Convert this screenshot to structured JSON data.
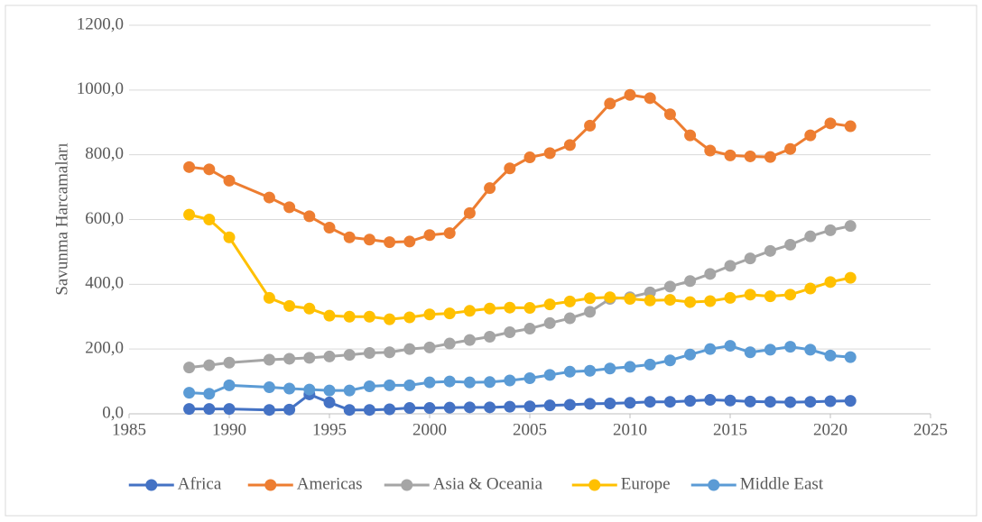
{
  "chart_data": {
    "type": "line",
    "y_label": "Savunma Harcamaları",
    "x": [
      1988,
      1989,
      1990,
      1992,
      1993,
      1994,
      1995,
      1996,
      1997,
      1998,
      1999,
      2000,
      2001,
      2002,
      2003,
      2004,
      2005,
      2006,
      2007,
      2008,
      2009,
      2010,
      2011,
      2012,
      2013,
      2014,
      2015,
      2016,
      2017,
      2018,
      2019,
      2020,
      2021
    ],
    "series": [
      {
        "name": "Africa",
        "color": "#4472c4",
        "values": [
          15,
          15,
          15,
          12,
          13,
          60,
          35,
          12,
          12,
          14,
          18,
          18,
          19,
          20,
          20,
          22,
          23,
          26,
          28,
          31,
          32,
          34,
          37,
          37,
          40,
          43,
          41,
          38,
          37,
          36,
          37,
          39,
          40
        ]
      },
      {
        "name": "Americas",
        "color": "#ed7d31",
        "values": [
          762,
          755,
          720,
          668,
          638,
          610,
          575,
          545,
          538,
          530,
          532,
          552,
          558,
          620,
          697,
          758,
          792,
          805,
          830,
          890,
          958,
          985,
          975,
          925,
          860,
          813,
          798,
          795,
          793,
          818,
          860,
          897,
          888
        ]
      },
      {
        "name": "Asia & Oceania",
        "color": "#a5a5a5",
        "values": [
          143,
          150,
          158,
          167,
          170,
          173,
          177,
          182,
          188,
          190,
          200,
          205,
          217,
          228,
          238,
          252,
          263,
          280,
          295,
          315,
          355,
          360,
          375,
          393,
          410,
          432,
          457,
          480,
          503,
          522,
          548,
          567,
          580
        ]
      },
      {
        "name": "Europe",
        "color": "#ffc000",
        "values": [
          615,
          600,
          545,
          358,
          333,
          325,
          303,
          300,
          300,
          292,
          298,
          307,
          310,
          318,
          325,
          328,
          327,
          338,
          347,
          357,
          360,
          355,
          350,
          352,
          345,
          348,
          358,
          368,
          363,
          368,
          387,
          407,
          420
        ]
      },
      {
        "name": "Middle East",
        "color": "#5b9bd5",
        "values": [
          65,
          62,
          88,
          82,
          78,
          75,
          72,
          72,
          85,
          88,
          88,
          97,
          100,
          97,
          98,
          103,
          110,
          120,
          130,
          133,
          140,
          145,
          152,
          165,
          183,
          200,
          210,
          190,
          198,
          207,
          198,
          180,
          175
        ]
      }
    ],
    "xlim": [
      1985,
      2025
    ],
    "xticks": [
      1985,
      1990,
      1995,
      2000,
      2005,
      2010,
      2015,
      2020,
      2025
    ],
    "ylim": [
      0,
      1200
    ],
    "yticks": [
      {
        "value": 0,
        "label": "0,0"
      },
      {
        "value": 200,
        "label": "200,0"
      },
      {
        "value": 400,
        "label": "400,0"
      },
      {
        "value": 600,
        "label": "600,0"
      },
      {
        "value": 800,
        "label": "800,0"
      },
      {
        "value": 1000,
        "label": "1000,0"
      },
      {
        "value": 1200,
        "label": "1200,0"
      }
    ],
    "grid": true,
    "legend": "bottom"
  }
}
